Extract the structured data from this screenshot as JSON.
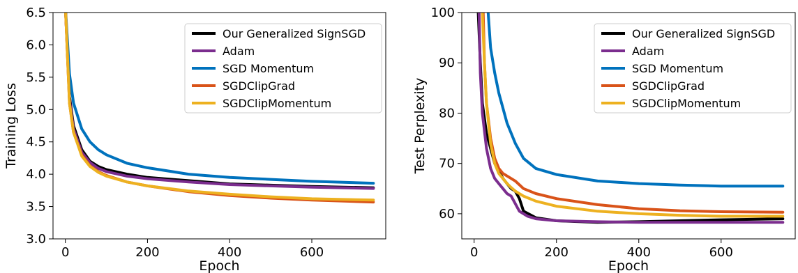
{
  "chart_data": [
    {
      "type": "line",
      "title": "",
      "xlabel": "Epoch",
      "ylabel": "Training Loss",
      "xlim": [
        -30,
        780
      ],
      "ylim": [
        3.0,
        6.5
      ],
      "xticks": [
        0,
        200,
        400,
        600
      ],
      "yticks": [
        3.0,
        3.5,
        4.0,
        4.5,
        5.0,
        5.5,
        6.0,
        6.5
      ],
      "ytick_labels": [
        "3.0",
        "3.5",
        "4.0",
        "4.5",
        "5.0",
        "5.5",
        "6.0",
        "6.5"
      ],
      "grid": false,
      "legend": "top-right",
      "series": [
        {
          "name": "Our Generalized SignSGD",
          "color": "#000000",
          "x": [
            0,
            10,
            20,
            40,
            60,
            80,
            100,
            150,
            200,
            300,
            400,
            500,
            600,
            750
          ],
          "y": [
            6.6,
            5.2,
            4.75,
            4.38,
            4.2,
            4.12,
            4.07,
            4.0,
            3.95,
            3.9,
            3.85,
            3.83,
            3.81,
            3.79
          ]
        },
        {
          "name": "Adam",
          "color": "#7B2D8E",
          "x": [
            0,
            10,
            20,
            40,
            60,
            80,
            100,
            150,
            200,
            300,
            400,
            500,
            600,
            750
          ],
          "y": [
            6.6,
            5.15,
            4.7,
            4.34,
            4.18,
            4.09,
            4.04,
            3.97,
            3.93,
            3.88,
            3.84,
            3.82,
            3.8,
            3.78
          ]
        },
        {
          "name": "SGD Momentum",
          "color": "#0072BD",
          "x": [
            0,
            10,
            20,
            40,
            60,
            80,
            100,
            150,
            200,
            300,
            400,
            500,
            600,
            750
          ],
          "y": [
            6.6,
            5.55,
            5.1,
            4.7,
            4.5,
            4.38,
            4.3,
            4.17,
            4.1,
            4.0,
            3.95,
            3.92,
            3.89,
            3.86
          ]
        },
        {
          "name": "SGDClipGrad",
          "color": "#D95319",
          "x": [
            0,
            10,
            20,
            40,
            60,
            80,
            100,
            150,
            200,
            300,
            400,
            500,
            600,
            750
          ],
          "y": [
            6.6,
            5.1,
            4.65,
            4.3,
            4.13,
            4.04,
            3.98,
            3.88,
            3.82,
            3.73,
            3.67,
            3.63,
            3.6,
            3.57
          ]
        },
        {
          "name": "SGDClipMomentum",
          "color": "#EDB120",
          "x": [
            0,
            10,
            20,
            40,
            60,
            80,
            100,
            150,
            200,
            300,
            400,
            500,
            600,
            750
          ],
          "y": [
            6.6,
            5.1,
            4.65,
            4.28,
            4.12,
            4.03,
            3.97,
            3.88,
            3.82,
            3.74,
            3.69,
            3.65,
            3.62,
            3.6
          ]
        }
      ]
    },
    {
      "type": "line",
      "title": "",
      "xlabel": "Epoch",
      "ylabel": "Test Perplexity",
      "xlim": [
        -30,
        780
      ],
      "ylim": [
        55,
        100
      ],
      "xticks": [
        0,
        200,
        400,
        600
      ],
      "yticks": [
        60,
        70,
        80,
        90,
        100
      ],
      "ytick_labels": [
        "60",
        "70",
        "80",
        "90",
        "100"
      ],
      "grid": false,
      "legend": "top-right",
      "series": [
        {
          "name": "Our Generalized SignSGD",
          "color": "#000000",
          "x": [
            10,
            15,
            20,
            30,
            40,
            50,
            60,
            70,
            80,
            90,
            100,
            110,
            120,
            150,
            200,
            300,
            400,
            500,
            600,
            750
          ],
          "y": [
            100,
            90,
            82,
            76,
            73,
            70,
            68.5,
            67,
            66,
            65,
            64.5,
            63,
            60.5,
            59.2,
            58.6,
            58.3,
            58.4,
            58.6,
            58.8,
            59.0
          ]
        },
        {
          "name": "Adam",
          "color": "#7B2D8E",
          "x": [
            12,
            15,
            20,
            30,
            40,
            50,
            60,
            70,
            80,
            90,
            100,
            110,
            130,
            150,
            200,
            300,
            400,
            600,
            750
          ],
          "y": [
            100,
            88,
            80,
            73,
            69,
            67,
            66,
            65,
            64,
            63.5,
            62,
            60.5,
            59.5,
            59,
            58.6,
            58.4,
            58.3,
            58.3,
            58.3
          ]
        },
        {
          "name": "SGD Momentum",
          "color": "#0072BD",
          "x": [
            34,
            40,
            50,
            60,
            70,
            80,
            90,
            100,
            120,
            150,
            200,
            300,
            400,
            500,
            600,
            750
          ],
          "y": [
            100,
            93,
            88,
            84,
            81,
            78,
            76,
            74,
            71,
            69,
            67.8,
            66.5,
            66,
            65.7,
            65.5,
            65.5
          ]
        },
        {
          "name": "SGDClipGrad",
          "color": "#D95319",
          "x": [
            22,
            25,
            30,
            40,
            50,
            60,
            70,
            80,
            90,
            100,
            120,
            150,
            200,
            300,
            400,
            500,
            600,
            750
          ],
          "y": [
            100,
            90,
            82,
            75,
            71,
            69,
            68,
            67.5,
            67,
            66.5,
            65,
            64,
            63,
            61.8,
            61,
            60.6,
            60.4,
            60.3
          ]
        },
        {
          "name": "SGDClipMomentum",
          "color": "#EDB120",
          "x": [
            20,
            25,
            30,
            40,
            50,
            60,
            70,
            80,
            90,
            100,
            120,
            150,
            200,
            300,
            400,
            500,
            600,
            750
          ],
          "y": [
            100,
            90,
            82,
            74,
            70,
            68,
            67,
            66,
            65.2,
            64.5,
            63.5,
            62.5,
            61.5,
            60.5,
            60,
            59.7,
            59.5,
            59.5
          ]
        }
      ]
    }
  ]
}
